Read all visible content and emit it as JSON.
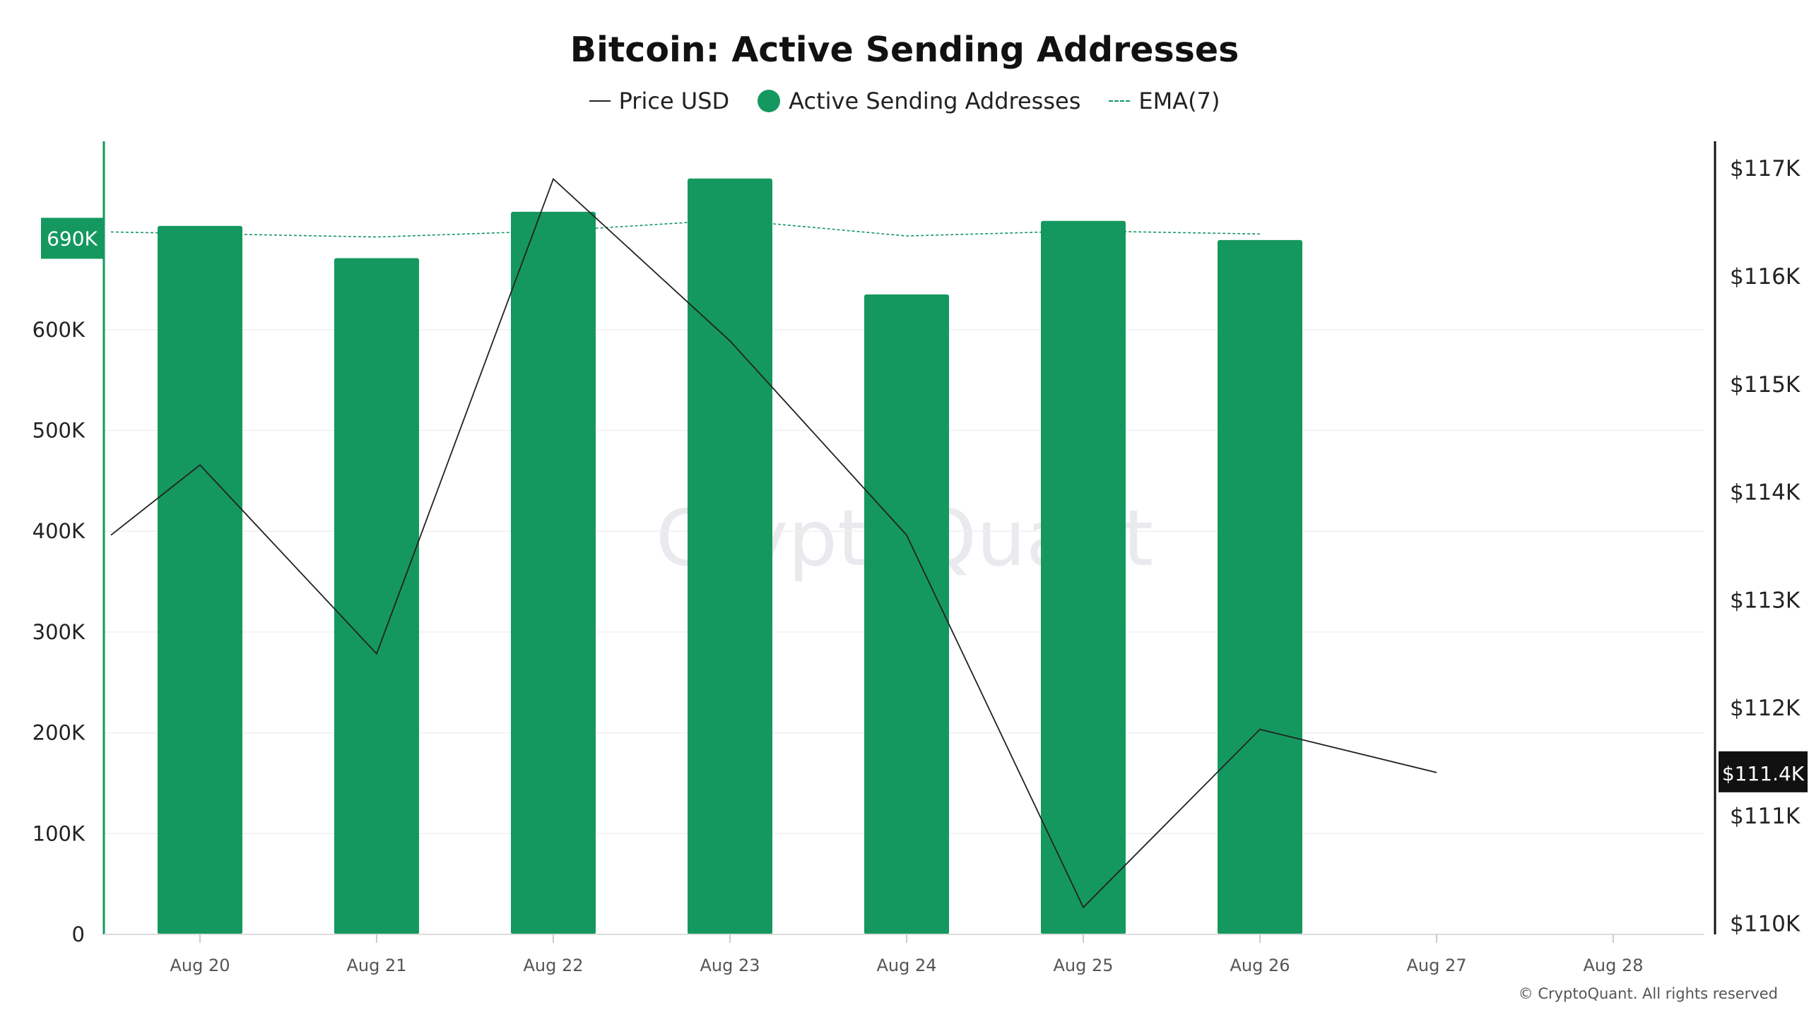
{
  "chart_data": {
    "type": "bar",
    "title": "Bitcoin: Active Sending Addresses",
    "categories": [
      "Aug 20",
      "Aug 21",
      "Aug 22",
      "Aug 23",
      "Aug 24",
      "Aug 25",
      "Aug 26",
      "Aug 27",
      "Aug 28"
    ],
    "series": [
      {
        "name": "Active Sending Addresses",
        "type": "bar",
        "color": "#14985f",
        "values": [
          703000,
          671000,
          717000,
          750000,
          635000,
          708000,
          689000,
          null,
          null
        ]
      },
      {
        "name": "EMA(7)",
        "type": "line",
        "style": "dashed",
        "color": "#14985f",
        "values": [
          697000,
          692000,
          698000,
          709000,
          693000,
          698000,
          695000,
          null,
          null
        ]
      },
      {
        "name": "Price USD",
        "type": "line",
        "axis": "right",
        "color": "#222222",
        "values": [
          113600,
          114250,
          112500,
          116900,
          115400,
          113600,
          110150,
          111800,
          111400
        ]
      }
    ],
    "y_left": {
      "ylim": [
        0,
        787000
      ],
      "ticks": [
        0,
        100000,
        200000,
        300000,
        400000,
        500000,
        600000
      ],
      "tick_labels": [
        "0",
        "100K",
        "200K",
        "300K",
        "400K",
        "500K",
        "600K"
      ]
    },
    "y_right": {
      "ylim": [
        109900,
        117250
      ],
      "ticks": [
        110000,
        111000,
        112000,
        113000,
        114000,
        115000,
        116000,
        117000
      ],
      "tick_labels": [
        "$110K",
        "$111K",
        "$112K",
        "$113K",
        "$114K",
        "$115K",
        "$116K",
        "$117K"
      ]
    },
    "grid": true,
    "legend": {
      "position": "top-center",
      "entries": [
        "Price USD",
        "Active Sending Addresses",
        "EMA(7)"
      ]
    },
    "current_value_badges": {
      "left": "690K",
      "right": "$111.4K"
    },
    "watermark": "CryptoQuant",
    "footer": "© CryptoQuant. All rights reserved"
  }
}
